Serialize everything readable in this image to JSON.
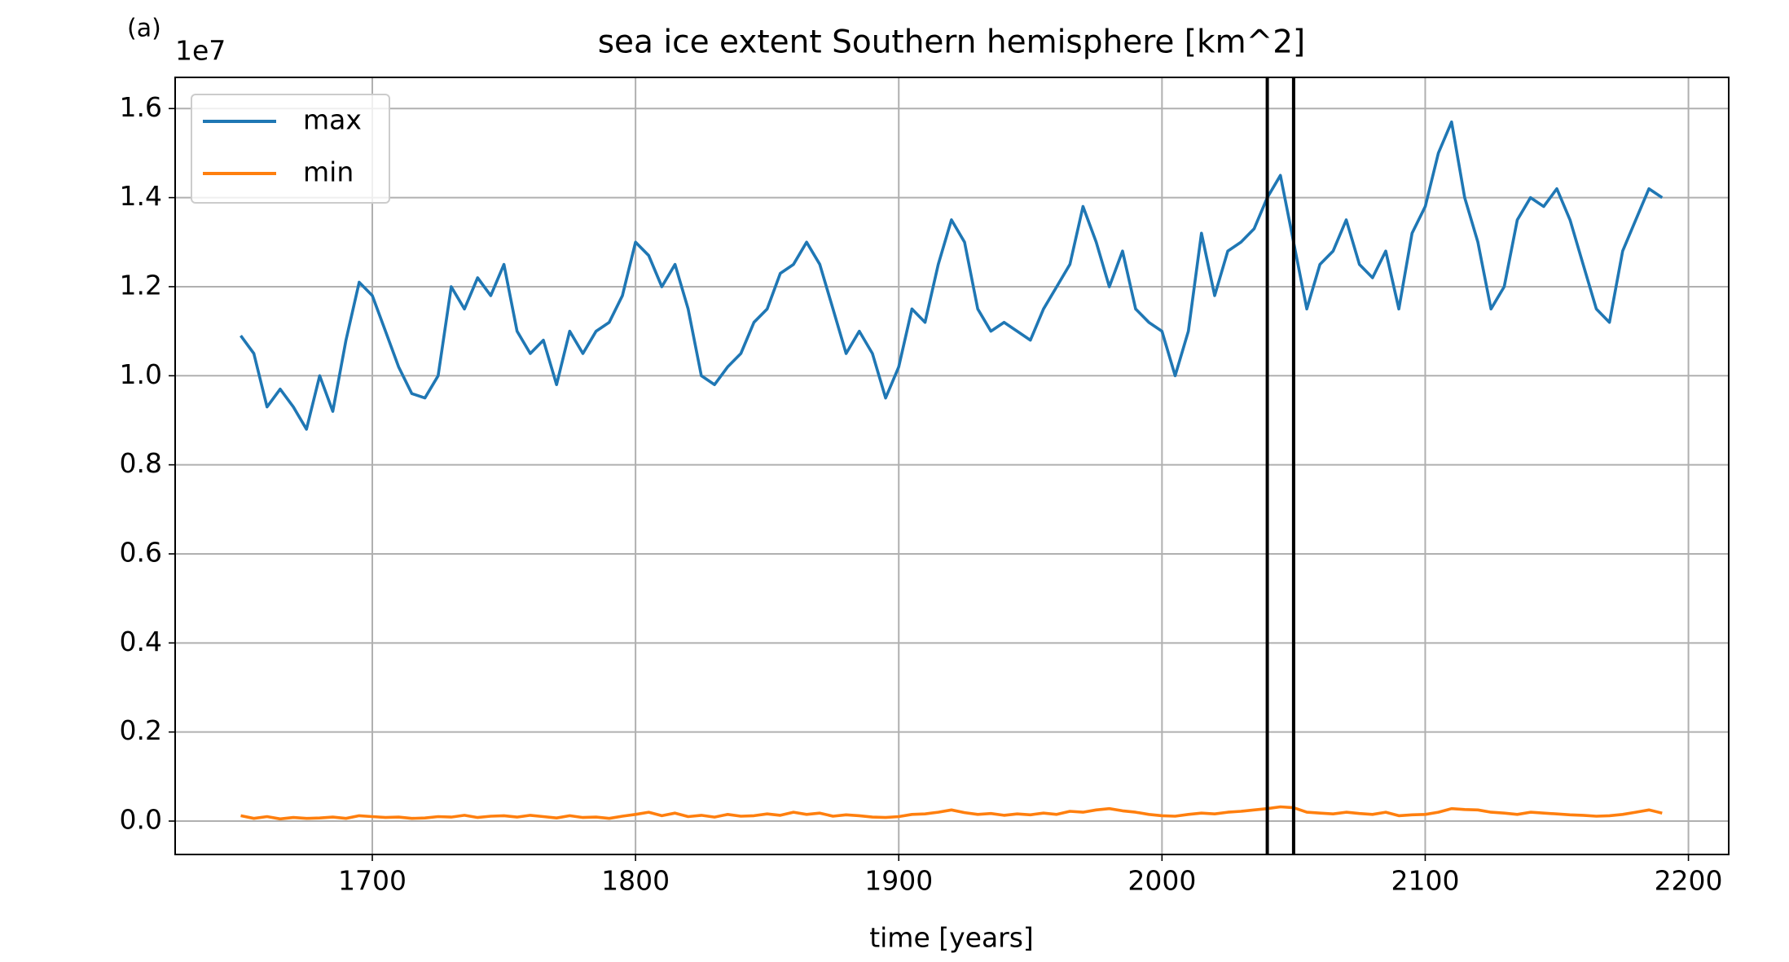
{
  "chart_data": {
    "type": "line",
    "title": "sea ice extent Southern hemisphere [km^2]",
    "annotation": "(a)",
    "y_offset_label": "1e7",
    "xlabel": "time [years]",
    "x": [
      1650,
      1655,
      1660,
      1665,
      1670,
      1675,
      1680,
      1685,
      1690,
      1695,
      1700,
      1705,
      1710,
      1715,
      1720,
      1725,
      1730,
      1735,
      1740,
      1745,
      1750,
      1755,
      1760,
      1765,
      1770,
      1775,
      1780,
      1785,
      1790,
      1795,
      1800,
      1805,
      1810,
      1815,
      1820,
      1825,
      1830,
      1835,
      1840,
      1845,
      1850,
      1855,
      1860,
      1865,
      1870,
      1875,
      1880,
      1885,
      1890,
      1895,
      1900,
      1905,
      1910,
      1915,
      1920,
      1925,
      1930,
      1935,
      1940,
      1945,
      1950,
      1955,
      1960,
      1965,
      1970,
      1975,
      1980,
      1985,
      1990,
      1995,
      2000,
      2005,
      2010,
      2015,
      2020,
      2025,
      2030,
      2035,
      2040,
      2045,
      2050,
      2055,
      2060,
      2065,
      2070,
      2075,
      2080,
      2085,
      2090,
      2095,
      2100,
      2105,
      2110,
      2115,
      2120,
      2125,
      2130,
      2135,
      2140,
      2145,
      2150,
      2155,
      2160,
      2165,
      2170,
      2175,
      2180,
      2185,
      2190
    ],
    "series": [
      {
        "name": "max",
        "color": "#1f77b4",
        "values": [
          10900000,
          10500000,
          9300000,
          9700000,
          9300000,
          8800000,
          10000000,
          9200000,
          10800000,
          12100000,
          11800000,
          11000000,
          10200000,
          9600000,
          9500000,
          10000000,
          12000000,
          11500000,
          12200000,
          11800000,
          12500000,
          11000000,
          10500000,
          10800000,
          9800000,
          11000000,
          10500000,
          11000000,
          11200000,
          11800000,
          13000000,
          12700000,
          12000000,
          12500000,
          11500000,
          10000000,
          9800000,
          10200000,
          10500000,
          11200000,
          11500000,
          12300000,
          12500000,
          13000000,
          12500000,
          11500000,
          10500000,
          11000000,
          10500000,
          9500000,
          10200000,
          11500000,
          11200000,
          12500000,
          13500000,
          13000000,
          11500000,
          11000000,
          11200000,
          11000000,
          10800000,
          11500000,
          12000000,
          12500000,
          13800000,
          13000000,
          12000000,
          12800000,
          11500000,
          11200000,
          11000000,
          10000000,
          11000000,
          13200000,
          11800000,
          12800000,
          13000000,
          13300000,
          14000000,
          14500000,
          13000000,
          11500000,
          12500000,
          12800000,
          13500000,
          12500000,
          12200000,
          12800000,
          11500000,
          13200000,
          13800000,
          15000000,
          15700000,
          14000000,
          13000000,
          11500000,
          12000000,
          13500000,
          14000000,
          13800000,
          14200000,
          13500000,
          12500000,
          11500000,
          11200000,
          12800000,
          13500000,
          14200000,
          14000000
        ]
      },
      {
        "name": "min",
        "color": "#ff7f0e",
        "values": [
          120000,
          60000,
          100000,
          50000,
          80000,
          60000,
          70000,
          90000,
          60000,
          120000,
          100000,
          80000,
          90000,
          60000,
          70000,
          100000,
          90000,
          130000,
          80000,
          110000,
          120000,
          90000,
          130000,
          100000,
          70000,
          120000,
          80000,
          90000,
          60000,
          110000,
          150000,
          200000,
          120000,
          180000,
          100000,
          130000,
          90000,
          150000,
          110000,
          120000,
          160000,
          130000,
          200000,
          150000,
          180000,
          110000,
          140000,
          120000,
          90000,
          80000,
          100000,
          150000,
          160000,
          200000,
          250000,
          190000,
          150000,
          170000,
          130000,
          160000,
          140000,
          180000,
          150000,
          220000,
          200000,
          250000,
          280000,
          230000,
          200000,
          150000,
          120000,
          110000,
          150000,
          180000,
          160000,
          200000,
          220000,
          250000,
          280000,
          320000,
          300000,
          200000,
          180000,
          160000,
          200000,
          170000,
          150000,
          200000,
          120000,
          140000,
          150000,
          200000,
          280000,
          260000,
          250000,
          200000,
          180000,
          150000,
          200000,
          180000,
          160000,
          140000,
          130000,
          110000,
          120000,
          150000,
          200000,
          250000,
          180000
        ]
      }
    ],
    "vlines": [
      2040,
      2050
    ],
    "xlim": [
      1625.1,
      2215.3
    ],
    "ylim": [
      -750000,
      16700000
    ],
    "xticks": [
      1700,
      1800,
      1900,
      2000,
      2100,
      2200
    ],
    "yticks": [
      {
        "value": 0,
        "label": "0.0"
      },
      {
        "value": 2000000,
        "label": "0.2"
      },
      {
        "value": 4000000,
        "label": "0.4"
      },
      {
        "value": 6000000,
        "label": "0.6"
      },
      {
        "value": 8000000,
        "label": "0.8"
      },
      {
        "value": 10000000,
        "label": "1.0"
      },
      {
        "value": 12000000,
        "label": "1.2"
      },
      {
        "value": 14000000,
        "label": "1.4"
      },
      {
        "value": 16000000,
        "label": "1.6"
      }
    ],
    "grid": true,
    "legend": "upper left"
  }
}
